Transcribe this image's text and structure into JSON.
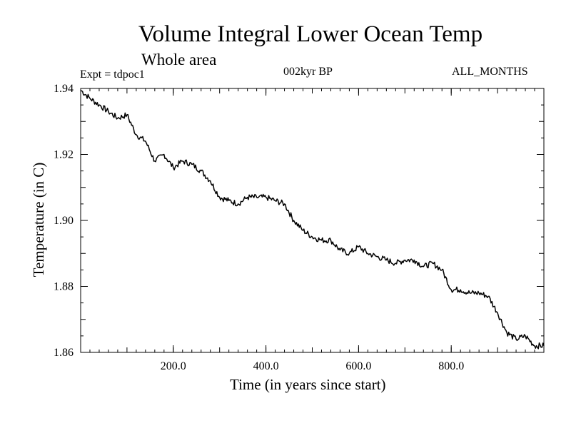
{
  "chart_data": {
    "type": "line",
    "title": "Volume Integral Lower Ocean Temp",
    "subtitle": "Whole area",
    "annotations": {
      "experiment": "Expt = tdpoc1",
      "period": "002kyr BP",
      "months": "ALL_MONTHS"
    },
    "xlabel": "Time (in years since start)",
    "ylabel": "Temperature (in C)",
    "xlim": [
      0,
      1000
    ],
    "ylim": [
      1.86,
      1.94
    ],
    "x_ticks": [
      200,
      400,
      600,
      800
    ],
    "x_tick_labels": [
      "200.0",
      "400.0",
      "600.0",
      "800.0"
    ],
    "y_ticks": [
      1.86,
      1.88,
      1.9,
      1.92,
      1.94
    ],
    "y_tick_labels": [
      "1.86",
      "1.88",
      "1.90",
      "1.92",
      "1.94"
    ],
    "grid": false,
    "series": [
      {
        "name": "Volume Integral Lower Ocean Temp",
        "color": "#000000",
        "x": [
          0,
          20,
          40,
          60,
          80,
          100,
          120,
          140,
          160,
          180,
          200,
          220,
          240,
          260,
          280,
          300,
          320,
          340,
          360,
          380,
          400,
          420,
          440,
          460,
          480,
          500,
          520,
          540,
          560,
          580,
          600,
          620,
          640,
          660,
          680,
          700,
          720,
          740,
          760,
          780,
          800,
          820,
          840,
          860,
          880,
          900,
          920,
          940,
          960,
          980,
          1000
        ],
        "y": [
          1.9395,
          1.937,
          1.935,
          1.933,
          1.931,
          1.932,
          1.926,
          1.924,
          1.918,
          1.92,
          1.916,
          1.918,
          1.917,
          1.915,
          1.912,
          1.907,
          1.906,
          1.905,
          1.907,
          1.907,
          1.907,
          1.906,
          1.905,
          1.9,
          1.897,
          1.895,
          1.894,
          1.894,
          1.891,
          1.89,
          1.892,
          1.89,
          1.889,
          1.888,
          1.887,
          1.888,
          1.888,
          1.886,
          1.887,
          1.885,
          1.879,
          1.879,
          1.878,
          1.878,
          1.877,
          1.872,
          1.866,
          1.864,
          1.865,
          1.862,
          1.862
        ]
      }
    ]
  }
}
